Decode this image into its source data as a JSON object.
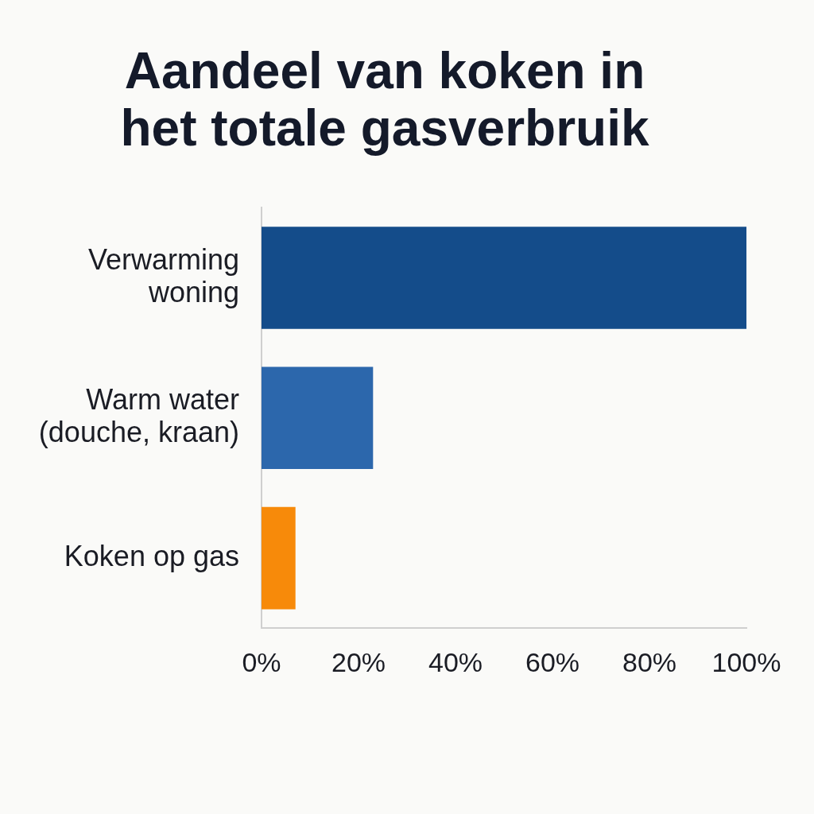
{
  "chart_data": {
    "type": "bar",
    "orientation": "horizontal",
    "title": "Aandeel van koken in het totale gasverbruik",
    "categories": [
      "Verwarming woning",
      "Warm water (douche, kraan)",
      "Koken op gas"
    ],
    "values": [
      100,
      23,
      7
    ],
    "colors": [
      "#144c8a",
      "#2c67ac",
      "#f78a0a"
    ],
    "xlim": [
      0,
      100
    ],
    "xticks": [
      {
        "value": 0,
        "label": "0%"
      },
      {
        "value": 20,
        "label": "20%"
      },
      {
        "value": 40,
        "label": "40%"
      },
      {
        "value": 60,
        "label": "60%"
      },
      {
        "value": 80,
        "label": "80%"
      },
      {
        "value": 100,
        "label": "100%"
      }
    ],
    "grid": false,
    "legend": false
  }
}
